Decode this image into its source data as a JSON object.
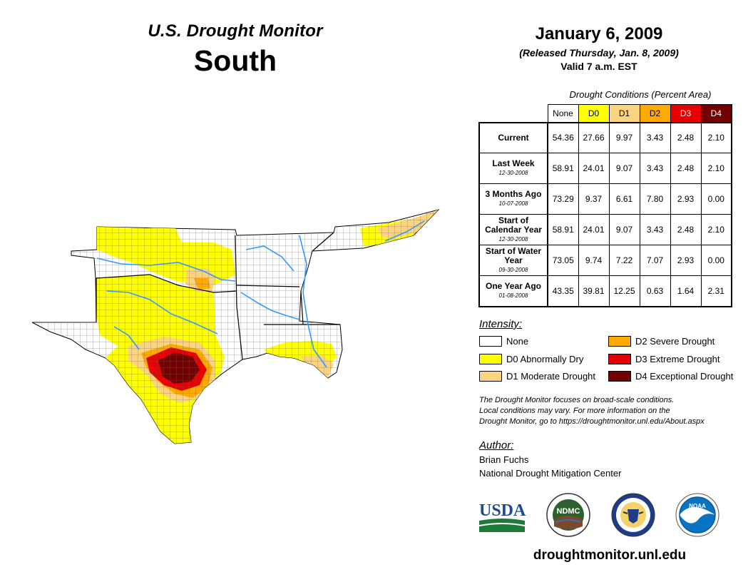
{
  "header": {
    "title": "U.S. Drought Monitor",
    "region": "South",
    "date": "January 6, 2009",
    "released": "(Released Thursday, Jan. 8, 2009)",
    "valid": "Valid 7 a.m. EST"
  },
  "stats": {
    "caption": "Drought Conditions (Percent Area)",
    "columns": [
      "None",
      "D0",
      "D1",
      "D2",
      "D3",
      "D4"
    ],
    "column_colors": [
      "#ffffff",
      "#ffff00",
      "#fcd37f",
      "#ffaa00",
      "#e60000",
      "#730000"
    ],
    "rows": [
      {
        "label": "Current",
        "sub": "",
        "values": [
          "54.36",
          "27.66",
          "9.97",
          "3.43",
          "2.48",
          "2.10"
        ]
      },
      {
        "label": "Last Week",
        "sub": "12-30-2008",
        "values": [
          "58.91",
          "24.01",
          "9.07",
          "3.43",
          "2.48",
          "2.10"
        ]
      },
      {
        "label": "3 Months Ago",
        "sub": "10-07-2008",
        "values": [
          "73.29",
          "9.37",
          "6.61",
          "7.80",
          "2.93",
          "0.00"
        ]
      },
      {
        "label": "Start of Calendar Year",
        "sub": "12-30-2008",
        "values": [
          "58.91",
          "24.01",
          "9.07",
          "3.43",
          "2.48",
          "2.10"
        ]
      },
      {
        "label": "Start of Water Year",
        "sub": "09-30-2008",
        "values": [
          "73.05",
          "9.74",
          "7.22",
          "7.07",
          "2.93",
          "0.00"
        ]
      },
      {
        "label": "One Year Ago",
        "sub": "01-08-2008",
        "values": [
          "43.35",
          "39.81",
          "12.25",
          "0.63",
          "1.64",
          "2.31"
        ]
      }
    ]
  },
  "legend": {
    "title": "Intensity:",
    "items": [
      {
        "label": "None",
        "color": "#ffffff"
      },
      {
        "label": "D0 Abnormally Dry",
        "color": "#ffff00"
      },
      {
        "label": "D1 Moderate Drought",
        "color": "#fcd37f"
      },
      {
        "label": "D2 Severe Drought",
        "color": "#ffaa00"
      },
      {
        "label": "D3 Extreme Drought",
        "color": "#e60000"
      },
      {
        "label": "D4 Exceptional Drought",
        "color": "#730000"
      }
    ]
  },
  "note": {
    "line1": "The Drought Monitor focuses on broad-scale conditions.",
    "line2": "Local conditions may vary. For more information on the",
    "line3": "Drought Monitor, go to https://droughtmonitor.unl.edu/About.aspx"
  },
  "author": {
    "title": "Author:",
    "name": "Brian Fuchs",
    "org": "National Drought Mitigation Center"
  },
  "logos": {
    "usda": "USDA",
    "ndmc": "NDMC",
    "noaa": "NOAA",
    "icons": [
      "usda-logo-icon",
      "ndmc-logo-icon",
      "commerce-seal-icon",
      "noaa-logo-icon"
    ]
  },
  "url": "droughtmonitor.unl.edu"
}
